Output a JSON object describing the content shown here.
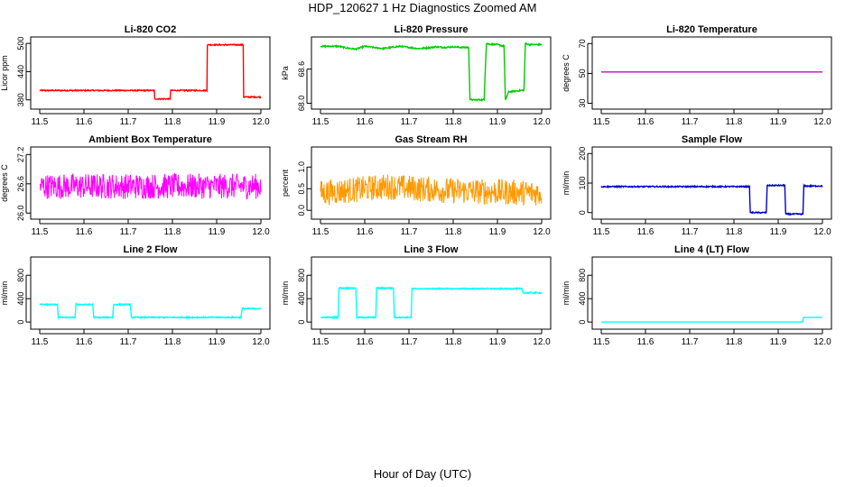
{
  "title": "HDP_120627  1 Hz Diagnostics Zoomed AM",
  "xlabel": "Hour of Day (UTC)",
  "chart_data": [
    {
      "type": "line",
      "title": "Li-820 CO2",
      "ylabel": "Licor ppm",
      "xlim": [
        11.5,
        12.0
      ],
      "xticks": [
        11.5,
        11.6,
        11.7,
        11.8,
        11.9,
        12.0
      ],
      "ylim": [
        368,
        506
      ],
      "yticks": [
        380,
        440,
        500
      ],
      "color": "#ff0000",
      "noise": 1.2,
      "series": [
        {
          "x": [
            11.5,
            11.759,
            11.759,
            11.795,
            11.795,
            11.878,
            11.878,
            11.96,
            11.96,
            12.0
          ],
          "y": [
            400,
            400,
            382,
            382,
            400,
            400,
            497,
            497,
            386,
            386
          ]
        }
      ]
    },
    {
      "type": "line",
      "title": "Li-820 Pressure",
      "ylabel": "kPa",
      "xlim": [
        11.5,
        12.0
      ],
      "xticks": [
        11.5,
        11.6,
        11.7,
        11.8,
        11.9,
        12.0
      ],
      "ylim": [
        67.96,
        69.1
      ],
      "yticks": [
        68.0,
        68.6
      ],
      "color": "#00cc00",
      "noise": 0.012,
      "series": [
        {
          "x": [
            11.5,
            11.54,
            11.56,
            11.58,
            11.6,
            11.62,
            11.64,
            11.66,
            11.68,
            11.7,
            11.72,
            11.74,
            11.76,
            11.78,
            11.8,
            11.82,
            11.835,
            11.838,
            11.87,
            11.872,
            11.875,
            11.88,
            11.9,
            11.915,
            11.918,
            11.925,
            11.96,
            11.963,
            11.97,
            12.0
          ],
          "y": [
            69.0,
            69.0,
            68.97,
            68.95,
            69.0,
            68.98,
            68.96,
            68.98,
            69.0,
            68.98,
            68.96,
            68.97,
            68.99,
            68.98,
            68.99,
            68.98,
            68.98,
            68.06,
            68.06,
            68.5,
            69.05,
            69.04,
            69.03,
            69.0,
            68.05,
            68.2,
            68.23,
            69.05,
            69.03,
            69.03
          ]
        }
      ]
    },
    {
      "type": "line",
      "title": "Li-820 Temperature",
      "ylabel": "degrees C",
      "xlim": [
        11.5,
        12.0
      ],
      "xticks": [
        11.5,
        11.6,
        11.7,
        11.8,
        11.9,
        12.0
      ],
      "ylim": [
        28.5,
        72
      ],
      "yticks": [
        30,
        50,
        70
      ],
      "color": "#cc00cc",
      "noise": 0,
      "series": [
        {
          "x": [
            11.5,
            12.0
          ],
          "y": [
            51,
            51
          ]
        }
      ]
    },
    {
      "type": "line",
      "title": "Ambient Box Temperature",
      "ylabel": "degrees C",
      "xlim": [
        11.5,
        12.0
      ],
      "xticks": [
        11.5,
        11.6,
        11.7,
        11.8,
        11.9,
        12.0
      ],
      "ylim": [
        25.95,
        27.28
      ],
      "yticks": [
        26.0,
        26.6,
        27.2
      ],
      "color": "#ff00ff",
      "noise": 0.26,
      "series": [
        {
          "x": [
            11.5,
            12.0
          ],
          "y": [
            26.55,
            26.55
          ]
        }
      ]
    },
    {
      "type": "line",
      "title": "Gas Stream RH",
      "ylabel": "percent",
      "xlim": [
        11.5,
        12.0
      ],
      "xticks": [
        11.5,
        11.6,
        11.7,
        11.8,
        11.9,
        12.0
      ],
      "ylim": [
        -0.12,
        1.38
      ],
      "yticks": [
        0.0,
        0.5,
        1.0
      ],
      "color": "#ff9900",
      "noise": 0.3,
      "series": [
        {
          "x": [
            11.5,
            11.65,
            11.8,
            12.0
          ],
          "y": [
            0.4,
            0.55,
            0.45,
            0.4
          ]
        }
      ]
    },
    {
      "type": "line",
      "title": "Sample Flow",
      "ylabel": "ml/min",
      "xlim": [
        11.5,
        12.0
      ],
      "xticks": [
        11.5,
        11.6,
        11.7,
        11.8,
        11.9,
        12.0
      ],
      "ylim": [
        -10,
        210
      ],
      "yticks": [
        0,
        100,
        200
      ],
      "color": "#0000cc",
      "noise": 2,
      "series": [
        {
          "x": [
            11.5,
            11.835,
            11.837,
            11.873,
            11.875,
            11.915,
            11.917,
            11.956,
            11.958,
            12.0
          ],
          "y": [
            88,
            88,
            0,
            0,
            92,
            92,
            -5,
            -5,
            90,
            90
          ]
        }
      ]
    },
    {
      "type": "line",
      "title": "Line 2 Flow",
      "ylabel": "ml/min",
      "xlim": [
        11.5,
        12.0
      ],
      "xticks": [
        11.5,
        11.6,
        11.7,
        11.8,
        11.9,
        12.0
      ],
      "ylim": [
        -60,
        1050
      ],
      "yticks": [
        0,
        400,
        800
      ],
      "color": "#00ffff",
      "noise": 10,
      "series": [
        {
          "x": [
            11.5,
            11.54,
            11.542,
            11.58,
            11.582,
            11.62,
            11.622,
            11.665,
            11.667,
            11.705,
            11.707,
            11.955,
            11.958,
            12.0
          ],
          "y": [
            300,
            300,
            80,
            80,
            300,
            300,
            80,
            80,
            300,
            300,
            80,
            80,
            230,
            230
          ]
        }
      ]
    },
    {
      "type": "line",
      "title": "Line 3 Flow",
      "ylabel": "ml/min",
      "xlim": [
        11.5,
        12.0
      ],
      "xticks": [
        11.5,
        11.6,
        11.7,
        11.8,
        11.9,
        12.0
      ],
      "ylim": [
        -60,
        1050
      ],
      "yticks": [
        0,
        400,
        800
      ],
      "color": "#00ffff",
      "noise": 10,
      "series": [
        {
          "x": [
            11.5,
            11.54,
            11.542,
            11.58,
            11.582,
            11.625,
            11.627,
            11.665,
            11.667,
            11.705,
            11.707,
            11.955,
            11.958,
            12.0
          ],
          "y": [
            80,
            80,
            580,
            580,
            80,
            80,
            580,
            580,
            80,
            80,
            570,
            570,
            500,
            500
          ]
        }
      ]
    },
    {
      "type": "line",
      "title": "Line 4 (LT) Flow",
      "ylabel": "ml/min",
      "xlim": [
        11.5,
        12.0
      ],
      "xticks": [
        11.5,
        11.6,
        11.7,
        11.8,
        11.9,
        12.0
      ],
      "ylim": [
        -60,
        1050
      ],
      "yticks": [
        0,
        400,
        800
      ],
      "color": "#00ffff",
      "noise": 0,
      "series": [
        {
          "x": [
            11.5,
            11.955,
            11.957,
            12.0
          ],
          "y": [
            0,
            0,
            80,
            80
          ]
        }
      ]
    }
  ]
}
